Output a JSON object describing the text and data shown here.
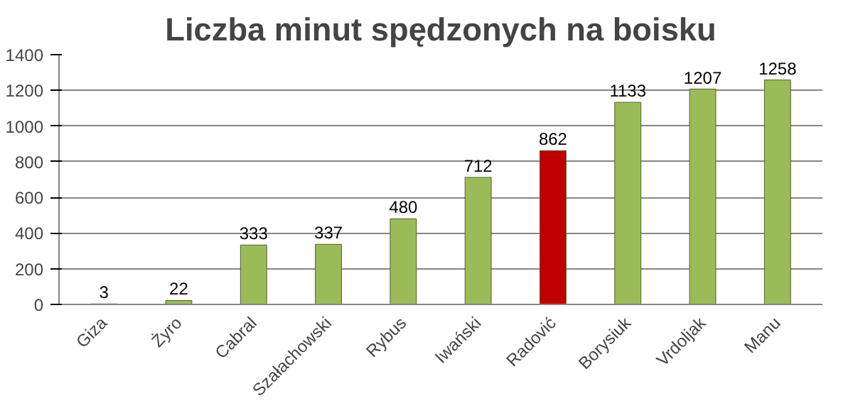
{
  "chart_data": {
    "type": "bar",
    "title": "Liczba minut spędzonych na boisku",
    "categories": [
      "Giza",
      "Żyro",
      "Cabral",
      "Szałachowski",
      "Rybus",
      "Iwański",
      "Radović",
      "Borysiuk",
      "Vrdoljak",
      "Manu"
    ],
    "values": [
      3,
      22,
      333,
      337,
      480,
      712,
      862,
      1133,
      1207,
      1258
    ],
    "colors": [
      "#9bbb59",
      "#9bbb59",
      "#9bbb59",
      "#9bbb59",
      "#9bbb59",
      "#9bbb59",
      "#c00000",
      "#9bbb59",
      "#9bbb59",
      "#9bbb59"
    ],
    "ylim": [
      0,
      1400
    ],
    "yticks": [
      0,
      200,
      400,
      600,
      800,
      1000,
      1200,
      1400
    ],
    "grid": "y",
    "data_labels": true
  }
}
